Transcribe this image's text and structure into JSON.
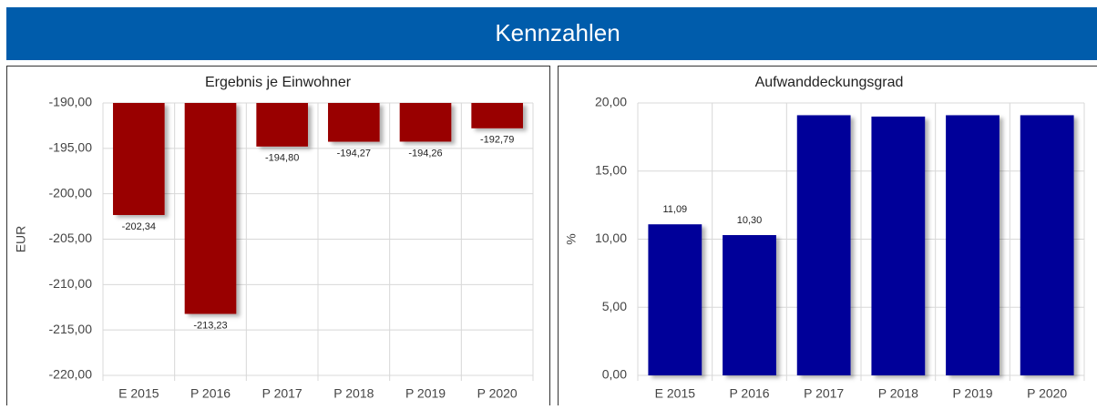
{
  "header": {
    "title": "Kennzahlen"
  },
  "chart_data": [
    {
      "type": "bar",
      "title": "Ergebnis je Einwohner",
      "y_label": "EUR",
      "categories": [
        "E 2015",
        "P 2016",
        "P 2017",
        "P 2018",
        "P 2019",
        "P 2020"
      ],
      "values": [
        -202.34,
        -213.23,
        -194.8,
        -194.27,
        -194.26,
        -192.79
      ],
      "value_labels": [
        "-202,34",
        "-213,23",
        "-194,80",
        "-194,27",
        "-194,26",
        "-192,79"
      ],
      "color": "#990000",
      "ylim": [
        -220,
        -190
      ],
      "yticks": [
        {
          "value": -190,
          "label": "-190,00"
        },
        {
          "value": -195,
          "label": "-195,00"
        },
        {
          "value": -200,
          "label": "-200,00"
        },
        {
          "value": -205,
          "label": "-205,00"
        },
        {
          "value": -210,
          "label": "-210,00"
        },
        {
          "value": -215,
          "label": "-215,00"
        },
        {
          "value": -220,
          "label": "-220,00"
        }
      ],
      "grid": true
    },
    {
      "type": "bar",
      "title": "Aufwanddeckungsgrad",
      "y_label": "%",
      "categories": [
        "E 2015",
        "P 2016",
        "P 2017",
        "P 2018",
        "P 2019",
        "P 2020"
      ],
      "values": [
        11.09,
        10.3,
        19.1,
        19.0,
        19.1,
        19.1
      ],
      "value_labels": [
        "11,09",
        "10,30",
        null,
        null,
        null,
        null
      ],
      "color": "#000099",
      "ylim": [
        0,
        20
      ],
      "yticks": [
        {
          "value": 0,
          "label": "0,00"
        },
        {
          "value": 5,
          "label": "5,00"
        },
        {
          "value": 10,
          "label": "10,00"
        },
        {
          "value": 15,
          "label": "15,00"
        },
        {
          "value": 20,
          "label": "20,00"
        }
      ],
      "grid": true
    }
  ]
}
